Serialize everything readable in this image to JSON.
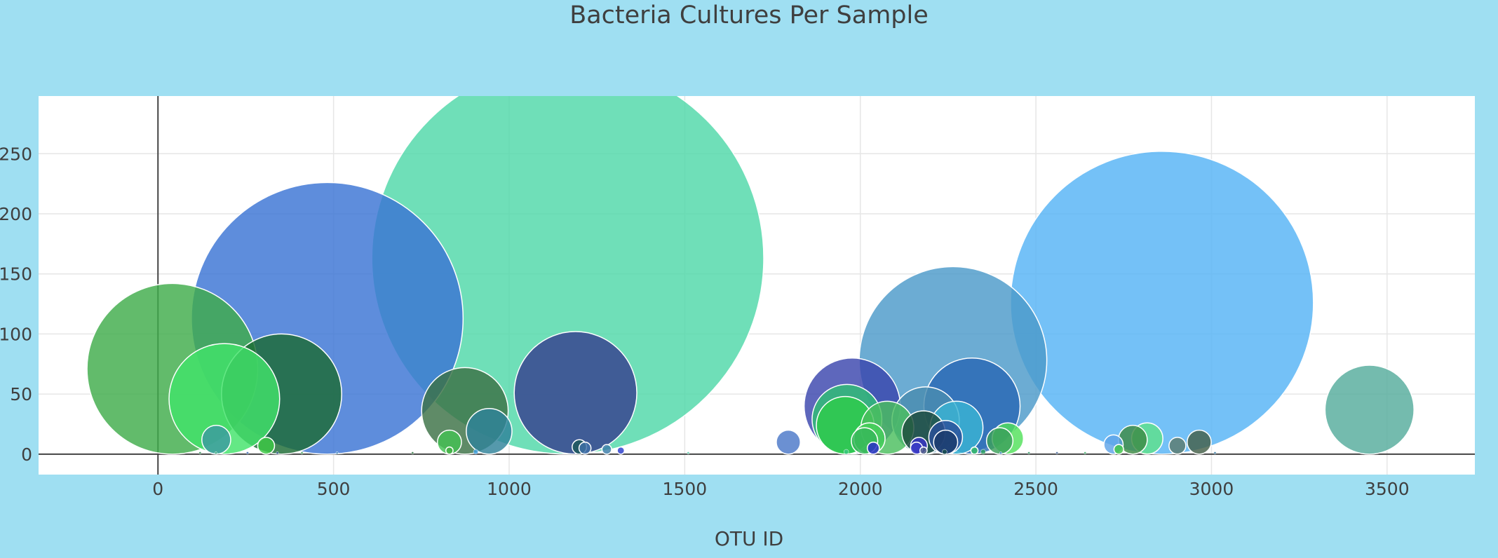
{
  "chart_data": {
    "type": "scatter",
    "title": "Bacteria Cultures Per Sample",
    "xlabel": "OTU ID",
    "ylabel": "",
    "xlim": [
      -340,
      3750
    ],
    "ylim": [
      -17,
      298
    ],
    "xticks": [
      0,
      500,
      1000,
      1500,
      2000,
      2500,
      3000,
      3500
    ],
    "yticks": [
      0,
      50,
      100,
      150,
      200,
      250
    ],
    "grid": true,
    "legend": "none",
    "background": "#9fdff2",
    "plot_background": "#ffffff",
    "points": [
      {
        "x": 1167,
        "y": 163,
        "size": 163,
        "color": "#4fd8a8"
      },
      {
        "x": 2859,
        "y": 126,
        "size": 126,
        "color": "#55b3f5"
      },
      {
        "x": 482,
        "y": 113,
        "size": 113,
        "color": "#3a74d4"
      },
      {
        "x": 2264,
        "y": 78,
        "size": 78,
        "color": "#4c9ac9"
      },
      {
        "x": 41,
        "y": 71,
        "size": 71,
        "color": "#3fac4a"
      },
      {
        "x": 1189,
        "y": 51,
        "size": 51,
        "color": "#36408f"
      },
      {
        "x": 352,
        "y": 50,
        "size": 50,
        "color": "#1c6b35"
      },
      {
        "x": 189,
        "y": 46,
        "size": 46,
        "color": "#42e36a"
      },
      {
        "x": 1977,
        "y": 40,
        "size": 40,
        "color": "#3b46ad"
      },
      {
        "x": 2318,
        "y": 40,
        "size": 40,
        "color": "#2a68b4"
      },
      {
        "x": 3450,
        "y": 37,
        "size": 37,
        "color": "#55ac9c"
      },
      {
        "x": 874,
        "y": 36,
        "size": 36,
        "color": "#3c7245"
      },
      {
        "x": 1962,
        "y": 29,
        "size": 29,
        "color": "#2fbf74"
      },
      {
        "x": 2186,
        "y": 28,
        "size": 28,
        "color": "#4b8cb0"
      },
      {
        "x": 1957,
        "y": 24,
        "size": 24,
        "color": "#2ecc4a"
      },
      {
        "x": 2077,
        "y": 22,
        "size": 22,
        "color": "#4abe5e"
      },
      {
        "x": 2274,
        "y": 22,
        "size": 22,
        "color": "#3ab3d3"
      },
      {
        "x": 943,
        "y": 19,
        "size": 19,
        "color": "#2f839a"
      },
      {
        "x": 2180,
        "y": 18,
        "size": 18,
        "color": "#1d4a3c"
      },
      {
        "x": 2243,
        "y": 14,
        "size": 14,
        "color": "#2a4f9a"
      },
      {
        "x": 2817,
        "y": 13,
        "size": 13,
        "color": "#5ee18a"
      },
      {
        "x": 2420,
        "y": 13,
        "size": 13,
        "color": "#52e05a"
      },
      {
        "x": 2026,
        "y": 13,
        "size": 13,
        "color": "#46d05a"
      },
      {
        "x": 166,
        "y": 12,
        "size": 12,
        "color": "#3c9aa0"
      },
      {
        "x": 2776,
        "y": 12,
        "size": 12,
        "color": "#3d8a43"
      },
      {
        "x": 2397,
        "y": 11,
        "size": 11,
        "color": "#3ca05a"
      },
      {
        "x": 2012,
        "y": 11,
        "size": 11,
        "color": "#37b75a"
      },
      {
        "x": 2243,
        "y": 10,
        "size": 10,
        "color": "#1b3a6b"
      },
      {
        "x": 1795,
        "y": 10,
        "size": 10,
        "color": "#4a78c8"
      },
      {
        "x": 830,
        "y": 10,
        "size": 10,
        "color": "#44c154"
      },
      {
        "x": 2965,
        "y": 10,
        "size": 10,
        "color": "#445f48"
      },
      {
        "x": 2721,
        "y": 8,
        "size": 8,
        "color": "#5ea4e8"
      },
      {
        "x": 2903,
        "y": 7,
        "size": 7,
        "color": "#5c7a6d"
      },
      {
        "x": 308,
        "y": 7,
        "size": 7,
        "color": "#3cc844"
      },
      {
        "x": 2167,
        "y": 7,
        "size": 7,
        "color": "#3a34c8"
      },
      {
        "x": 1200,
        "y": 6,
        "size": 6,
        "color": "#1f5a5a"
      },
      {
        "x": 1216,
        "y": 5,
        "size": 5,
        "color": "#4070a8"
      },
      {
        "x": 2037,
        "y": 5,
        "size": 5,
        "color": "#2a2acc"
      },
      {
        "x": 2160,
        "y": 5,
        "size": 5,
        "color": "#3c3cc8"
      },
      {
        "x": 2736,
        "y": 4,
        "size": 4,
        "color": "#40c444"
      },
      {
        "x": 1278,
        "y": 4,
        "size": 4,
        "color": "#3a7da8"
      },
      {
        "x": 1318,
        "y": 3,
        "size": 3,
        "color": "#2a3ccc"
      },
      {
        "x": 830,
        "y": 3,
        "size": 3,
        "color": "#44b044"
      },
      {
        "x": 2325,
        "y": 3,
        "size": 3,
        "color": "#36c066"
      },
      {
        "x": 2180,
        "y": 3,
        "size": 3,
        "color": "#4e5a8a"
      },
      {
        "x": 2240,
        "y": 2,
        "size": 2,
        "color": "#1a5050"
      },
      {
        "x": 905,
        "y": 2,
        "size": 2,
        "color": "#40a0e0"
      },
      {
        "x": 1960,
        "y": 2,
        "size": 2,
        "color": "#3cc880"
      },
      {
        "x": 2350,
        "y": 2,
        "size": 2,
        "color": "#2ca060"
      },
      {
        "x": 120,
        "y": 1,
        "size": 1,
        "color": "#3c8a5a"
      },
      {
        "x": 165,
        "y": 1,
        "size": 1,
        "color": "#46b080"
      },
      {
        "x": 255,
        "y": 1,
        "size": 1,
        "color": "#3c6ab0"
      },
      {
        "x": 340,
        "y": 1,
        "size": 1,
        "color": "#2a4a8a"
      },
      {
        "x": 410,
        "y": 1,
        "size": 1,
        "color": "#48a060"
      },
      {
        "x": 510,
        "y": 1,
        "size": 1,
        "color": "#4a90c0"
      },
      {
        "x": 725,
        "y": 1,
        "size": 1,
        "color": "#3a7a4a"
      },
      {
        "x": 1510,
        "y": 1,
        "size": 1,
        "color": "#60d0b0"
      },
      {
        "x": 2400,
        "y": 1,
        "size": 1,
        "color": "#4a8ad0"
      },
      {
        "x": 2480,
        "y": 1,
        "size": 1,
        "color": "#3a9a6a"
      },
      {
        "x": 2560,
        "y": 1,
        "size": 1,
        "color": "#4a6a9a"
      },
      {
        "x": 2640,
        "y": 1,
        "size": 1,
        "color": "#4ab070"
      },
      {
        "x": 3010,
        "y": 1,
        "size": 1,
        "color": "#3c7aa0"
      }
    ]
  }
}
